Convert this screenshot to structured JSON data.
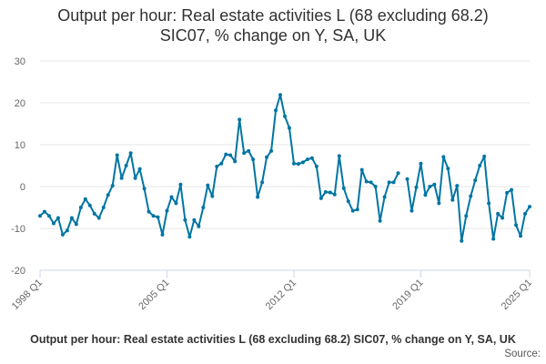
{
  "title_line1": "Output per hour: Real estate activities L (68 excluding 68.2)",
  "title_line2": "SIC07, % change on Y, SA, UK",
  "series_label": "Output per hour: Real estate activities L (68 excluding 68.2) SIC07, % change on Y, SA, UK",
  "source_label": "Source:",
  "line_color": "#0075a3",
  "chart_data": {
    "type": "line",
    "title": "Output per hour: Real estate activities L (68 excluding 68.2) SIC07, % change on Y, SA, UK",
    "ylim": [
      -20,
      30
    ],
    "yticks": [
      -20,
      -10,
      0,
      10,
      20,
      30
    ],
    "xticks": [
      "1998 Q1",
      "2005 Q1",
      "2012 Q1",
      "2019 Q1",
      "2025 Q1"
    ],
    "grid": "horizontal",
    "series": [
      {
        "name": "Output per hour: Real estate activities L (68 excluding 68.2) SIC07, % change on Y, SA, UK",
        "x": [
          "1998 Q1",
          "1998 Q2",
          "1998 Q3",
          "1998 Q4",
          "1999 Q1",
          "1999 Q2",
          "1999 Q3",
          "1999 Q4",
          "2000 Q1",
          "2000 Q2",
          "2000 Q3",
          "2000 Q4",
          "2001 Q1",
          "2001 Q2",
          "2001 Q3",
          "2001 Q4",
          "2002 Q1",
          "2002 Q2",
          "2002 Q3",
          "2002 Q4",
          "2003 Q1",
          "2003 Q2",
          "2003 Q3",
          "2003 Q4",
          "2004 Q1",
          "2004 Q2",
          "2004 Q3",
          "2004 Q4",
          "2005 Q1",
          "2005 Q2",
          "2005 Q3",
          "2005 Q4",
          "2006 Q1",
          "2006 Q2",
          "2006 Q3",
          "2006 Q4",
          "2007 Q1",
          "2007 Q2",
          "2007 Q3",
          "2007 Q4",
          "2008 Q1",
          "2008 Q2",
          "2008 Q3",
          "2008 Q4",
          "2009 Q1",
          "2009 Q2",
          "2009 Q3",
          "2009 Q4",
          "2010 Q1",
          "2010 Q2",
          "2010 Q3",
          "2010 Q4",
          "2011 Q1",
          "2011 Q2",
          "2011 Q3",
          "2011 Q4",
          "2012 Q1",
          "2012 Q2",
          "2012 Q3",
          "2012 Q4",
          "2013 Q1",
          "2013 Q2",
          "2013 Q3",
          "2013 Q4",
          "2014 Q1",
          "2014 Q2",
          "2014 Q3",
          "2014 Q4",
          "2015 Q1",
          "2015 Q2",
          "2015 Q3",
          "2015 Q4",
          "2016 Q1",
          "2016 Q2",
          "2016 Q3",
          "2016 Q4",
          "2017 Q1",
          "2017 Q2",
          "2017 Q3",
          "2017 Q4",
          "2018 Q1",
          "2018 Q2",
          "2018 Q3",
          "2018 Q4",
          "2019 Q1",
          "2019 Q2",
          "2019 Q3",
          "2019 Q4",
          "2020 Q1",
          "2020 Q2",
          "2020 Q3",
          "2020 Q4",
          "2021 Q1",
          "2021 Q2",
          "2021 Q3",
          "2021 Q4",
          "2022 Q1",
          "2022 Q2",
          "2022 Q3",
          "2022 Q4",
          "2023 Q1",
          "2023 Q2",
          "2023 Q3",
          "2023 Q4",
          "2024 Q1",
          "2024 Q2",
          "2024 Q3",
          "2024 Q4",
          "2025 Q1"
        ],
        "values": [
          -7.0,
          -6.0,
          -7.0,
          -8.8,
          -7.5,
          -11.5,
          -10.5,
          -7.5,
          -9.0,
          -5.0,
          -3.0,
          -4.5,
          -6.5,
          -7.5,
          -5.0,
          -2.0,
          0.2,
          7.5,
          2.0,
          5.0,
          8.0,
          2.0,
          4.2,
          -0.5,
          -6.0,
          -7.0,
          -7.3,
          -11.5,
          -5.8,
          -2.5,
          -4.0,
          0.5,
          -8.0,
          -12.0,
          -8.0,
          -9.5,
          -5.0,
          0.3,
          -2.3,
          4.8,
          5.5,
          7.7,
          7.5,
          6.0,
          16.0,
          8.0,
          8.5,
          6.5,
          -2.5,
          1.0,
          7.0,
          8.5,
          18.2,
          21.9,
          16.8,
          14.0,
          5.5,
          5.4,
          5.8,
          6.5,
          6.8,
          4.8,
          -2.8,
          -1.3,
          -1.4,
          -1.9,
          7.3,
          -0.4,
          -3.5,
          -5.8,
          -5.5,
          4.0,
          1.2,
          1.0,
          0.0,
          -8.2,
          -2.5,
          1.0,
          1.0,
          3.2,
          null,
          1.8,
          -5.8,
          -0.2,
          5.5,
          -2.0,
          0.0,
          0.5,
          -4.0,
          7.1,
          4.3,
          -3.2,
          0.2,
          -13.0,
          -7.0,
          -2.3,
          1.5,
          5.0,
          7.2,
          -4.0,
          -12.5,
          -6.5,
          -7.5,
          -1.5,
          -0.8,
          -9.2,
          -11.8,
          -6.5,
          -4.8
        ]
      }
    ]
  }
}
